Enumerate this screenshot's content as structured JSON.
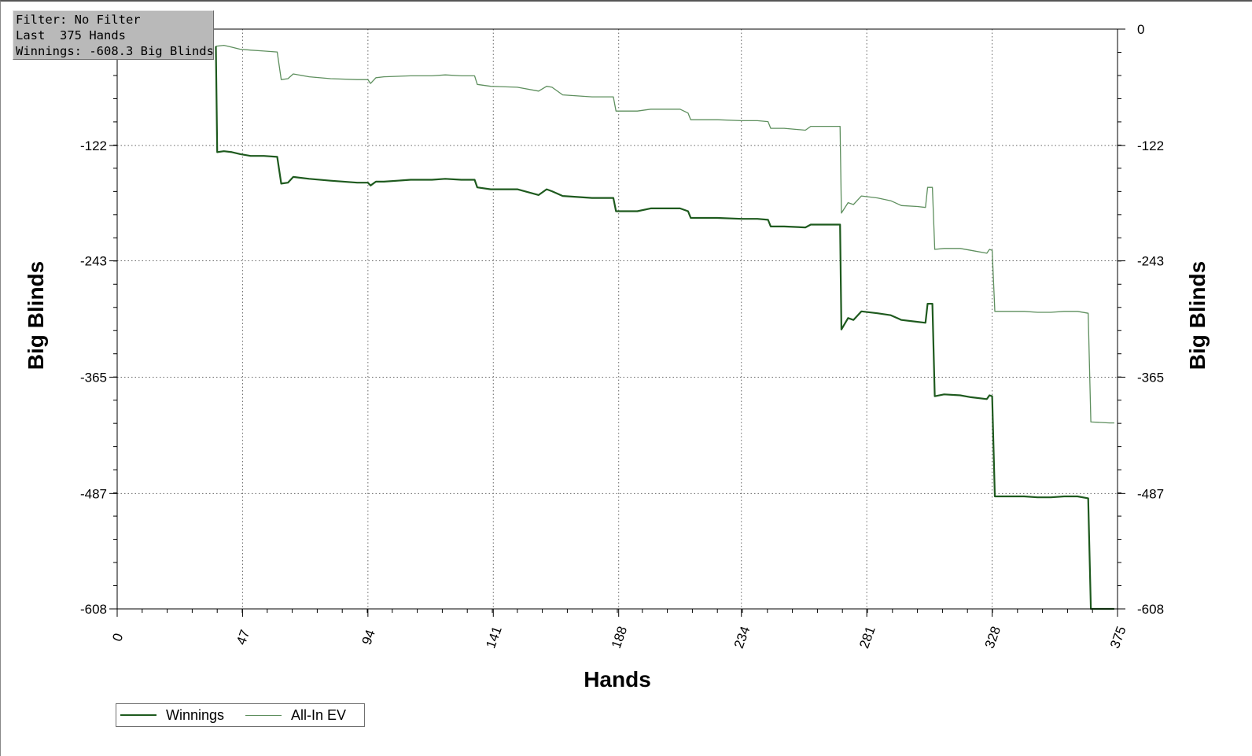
{
  "info": {
    "filter_line": "Filter: No Filter",
    "hands_line": "Last  375 Hands",
    "winnings_line": "Winnings: -608.3 Big Blinds"
  },
  "colors": {
    "winnings": "#1e5a1e",
    "all_in_ev": "#5e8f5e",
    "grid": "#666666"
  },
  "chart_data": {
    "type": "line",
    "xlabel": "Hands",
    "ylabel": "Big Blinds",
    "xlim": [
      0,
      375
    ],
    "ylim": [
      -608,
      0
    ],
    "xticks": [
      "0",
      "47",
      "94",
      "141",
      "188",
      "234",
      "281",
      "328",
      "375"
    ],
    "yticks": [
      "0",
      "-122",
      "-243",
      "-365",
      "-487",
      "-608"
    ],
    "ytick_values": [
      0,
      -122,
      -243,
      -365,
      -487,
      -608
    ],
    "grid": true,
    "legend_position": "bottom-left",
    "series": [
      {
        "name": "Winnings",
        "points": [
          [
            37,
            -18
          ],
          [
            37.5,
            -129
          ],
          [
            40,
            -128
          ],
          [
            43,
            -129
          ],
          [
            46,
            -131
          ],
          [
            50,
            -133
          ],
          [
            55,
            -133
          ],
          [
            60,
            -134
          ],
          [
            61.5,
            -162
          ],
          [
            64,
            -161
          ],
          [
            66,
            -155
          ],
          [
            72,
            -157
          ],
          [
            80,
            -159
          ],
          [
            90,
            -161
          ],
          [
            94,
            -161
          ],
          [
            95,
            -164
          ],
          [
            97,
            -160
          ],
          [
            100,
            -160
          ],
          [
            110,
            -158
          ],
          [
            118,
            -158
          ],
          [
            123,
            -157
          ],
          [
            129,
            -158
          ],
          [
            134,
            -158
          ],
          [
            135,
            -166
          ],
          [
            140,
            -168
          ],
          [
            150,
            -168
          ],
          [
            158,
            -174
          ],
          [
            161,
            -168
          ],
          [
            163,
            -170
          ],
          [
            167,
            -175
          ],
          [
            178,
            -177
          ],
          [
            186,
            -177
          ],
          [
            187,
            -191
          ],
          [
            195,
            -191
          ],
          [
            200,
            -188
          ],
          [
            211,
            -188
          ],
          [
            214,
            -191
          ],
          [
            215,
            -198
          ],
          [
            225,
            -198
          ],
          [
            234,
            -199
          ],
          [
            240,
            -199
          ],
          [
            244,
            -200
          ],
          [
            245,
            -207
          ],
          [
            250,
            -207
          ],
          [
            258,
            -208
          ],
          [
            260,
            -205
          ],
          [
            270,
            -205
          ],
          [
            271,
            -205
          ],
          [
            271.5,
            -315
          ],
          [
            274,
            -303
          ],
          [
            276,
            -305
          ],
          [
            279,
            -296
          ],
          [
            285,
            -298
          ],
          [
            290,
            -300
          ],
          [
            294,
            -305
          ],
          [
            300,
            -307
          ],
          [
            303,
            -308
          ],
          [
            303.8,
            -288
          ],
          [
            305,
            -288
          ],
          [
            305.6,
            -288
          ],
          [
            306.5,
            -385
          ],
          [
            310,
            -383
          ],
          [
            316,
            -384
          ],
          [
            320,
            -386
          ],
          [
            326,
            -388
          ],
          [
            327,
            -384
          ],
          [
            328,
            -385
          ],
          [
            329,
            -490
          ],
          [
            340,
            -490
          ],
          [
            345,
            -491
          ],
          [
            350,
            -491
          ],
          [
            355,
            -490
          ],
          [
            360,
            -490
          ],
          [
            364,
            -492
          ],
          [
            365,
            -608
          ],
          [
            372,
            -608
          ],
          [
            373.8,
            -608
          ]
        ]
      },
      {
        "name": "All-In EV",
        "points": [
          [
            37,
            -18
          ],
          [
            40,
            -17
          ],
          [
            43,
            -19
          ],
          [
            46,
            -21
          ],
          [
            50,
            -22
          ],
          [
            55,
            -23
          ],
          [
            60,
            -24
          ],
          [
            61.5,
            -53
          ],
          [
            64,
            -52
          ],
          [
            66,
            -47
          ],
          [
            72,
            -50
          ],
          [
            80,
            -52
          ],
          [
            90,
            -53
          ],
          [
            94,
            -53
          ],
          [
            95,
            -57
          ],
          [
            97,
            -51
          ],
          [
            100,
            -50
          ],
          [
            110,
            -49
          ],
          [
            118,
            -49
          ],
          [
            123,
            -48
          ],
          [
            129,
            -49
          ],
          [
            134,
            -49
          ],
          [
            135,
            -58
          ],
          [
            140,
            -60
          ],
          [
            150,
            -61
          ],
          [
            158,
            -65
          ],
          [
            161,
            -60
          ],
          [
            163,
            -61
          ],
          [
            167,
            -69
          ],
          [
            178,
            -71
          ],
          [
            186,
            -71
          ],
          [
            187,
            -86
          ],
          [
            195,
            -86
          ],
          [
            200,
            -84
          ],
          [
            211,
            -84
          ],
          [
            214,
            -88
          ],
          [
            215,
            -95
          ],
          [
            225,
            -95
          ],
          [
            234,
            -96
          ],
          [
            240,
            -96
          ],
          [
            244,
            -97
          ],
          [
            245,
            -104
          ],
          [
            250,
            -104
          ],
          [
            258,
            -106
          ],
          [
            260,
            -102
          ],
          [
            270,
            -102
          ],
          [
            271,
            -102
          ],
          [
            271.5,
            -193
          ],
          [
            274,
            -182
          ],
          [
            276,
            -184
          ],
          [
            279,
            -175
          ],
          [
            285,
            -177
          ],
          [
            290,
            -180
          ],
          [
            294,
            -185
          ],
          [
            300,
            -186
          ],
          [
            303,
            -187
          ],
          [
            303.8,
            -166
          ],
          [
            305,
            -166
          ],
          [
            305.6,
            -166
          ],
          [
            306.5,
            -231
          ],
          [
            310,
            -230
          ],
          [
            316,
            -230
          ],
          [
            320,
            -232
          ],
          [
            326,
            -235
          ],
          [
            327,
            -231
          ],
          [
            328,
            -232
          ],
          [
            329,
            -296
          ],
          [
            340,
            -296
          ],
          [
            345,
            -297
          ],
          [
            350,
            -297
          ],
          [
            355,
            -296
          ],
          [
            360,
            -296
          ],
          [
            364,
            -298
          ],
          [
            365,
            -412
          ],
          [
            372,
            -413
          ],
          [
            373.8,
            -413
          ]
        ]
      }
    ]
  }
}
